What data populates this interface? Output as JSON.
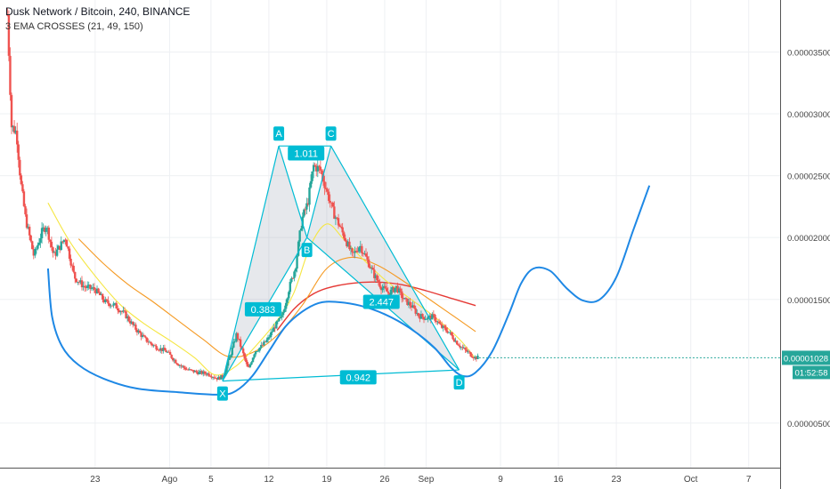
{
  "header": {
    "symbol": "Dusk Network / Bitcoin, 240, BINANCE",
    "indicator": "3 EMA CROSSES (21, 49, 150)"
  },
  "colors": {
    "up": "#26a69a",
    "down": "#ef5350",
    "ema21": "#f5e642",
    "ema49": "#f59a23",
    "ema150": "#e53935",
    "pattern": "#00bcd4",
    "projection": "#1e88e5",
    "price_tag": "#26a69a"
  },
  "chart_data": {
    "type": "candlestick",
    "y_axis": {
      "ticks": [
        "0.00003500",
        "0.00003000",
        "0.00002500",
        "0.00002000",
        "0.00001500",
        "0.00000500"
      ],
      "tick_values": [
        3.5e-05,
        3e-05,
        2.5e-05,
        2e-05,
        1.5e-05,
        5e-06
      ],
      "range": [
        1.4e-06,
        3.92e-05
      ]
    },
    "x_axis": {
      "ticks": [
        "23",
        "Ago",
        "5",
        "12",
        "19",
        "26",
        "Sep",
        "9",
        "16",
        "23",
        "Oct",
        "7"
      ],
      "tick_days": [
        0,
        9,
        14,
        21,
        28,
        35,
        40,
        49,
        56,
        63,
        72,
        79
      ],
      "range_days": [
        -11.5,
        82.8
      ]
    },
    "current_price": "0.00001028",
    "countdown": "01:52:58",
    "harmonic_pattern": {
      "points": [
        {
          "label": "X",
          "day": 15.4,
          "price": 8.4e-06
        },
        {
          "label": "A",
          "day": 22.2,
          "price": 2.74e-05
        },
        {
          "label": "B",
          "day": 25.6,
          "price": 2e-05
        },
        {
          "label": "C",
          "day": 28.5,
          "price": 2.74e-05
        },
        {
          "label": "D",
          "day": 44.0,
          "price": 9.3e-06
        }
      ],
      "ratios": [
        {
          "label": "1.011",
          "day": 25.5,
          "price": 2.68e-05
        },
        {
          "label": "0.383",
          "day": 20.3,
          "price": 1.42e-05
        },
        {
          "label": "2.447",
          "day": 34.6,
          "price": 1.48e-05
        },
        {
          "label": "0.942",
          "day": 31.8,
          "price": 8.7e-06
        }
      ]
    },
    "projection_curve": [
      [
        -5.7,
        1.75e-05
      ],
      [
        -5.2,
        1.36e-05
      ],
      [
        -4.0,
        1.12e-05
      ],
      [
        -2.0,
        9.7e-06
      ],
      [
        1.0,
        8.6e-06
      ],
      [
        5.0,
        7.8e-06
      ],
      [
        10.0,
        7.5e-06
      ],
      [
        15.0,
        7.3e-06
      ],
      [
        17.0,
        7.6e-06
      ],
      [
        19.0,
        8.8e-06
      ],
      [
        21.0,
        1.08e-05
      ],
      [
        23.0,
        1.28e-05
      ],
      [
        25.0,
        1.4e-05
      ],
      [
        27.0,
        1.47e-05
      ],
      [
        29.0,
        1.48e-05
      ],
      [
        32.0,
        1.45e-05
      ],
      [
        35.0,
        1.38e-05
      ],
      [
        38.0,
        1.27e-05
      ],
      [
        41.0,
        1.11e-05
      ],
      [
        43.0,
        9.5e-06
      ],
      [
        44.5,
        8.8e-06
      ],
      [
        46.0,
        9.1e-06
      ],
      [
        48.0,
        1.08e-05
      ],
      [
        50.0,
        1.38e-05
      ],
      [
        51.5,
        1.63e-05
      ],
      [
        53.0,
        1.75e-05
      ],
      [
        55.0,
        1.73e-05
      ],
      [
        57.0,
        1.59e-05
      ],
      [
        59.0,
        1.49e-05
      ],
      [
        61.0,
        1.5e-05
      ],
      [
        63.0,
        1.68e-05
      ],
      [
        65.0,
        2.05e-05
      ],
      [
        67.0,
        2.42e-05
      ]
    ],
    "ema_21": [
      [
        -5.7,
        2.28e-05
      ],
      [
        -3.0,
        1.96e-05
      ],
      [
        0.0,
        1.69e-05
      ],
      [
        3.0,
        1.46e-05
      ],
      [
        6.0,
        1.3e-05
      ],
      [
        9.0,
        1.17e-05
      ],
      [
        12.0,
        1.03e-05
      ],
      [
        14.5,
        8.9e-06
      ],
      [
        17.0,
        9.6e-06
      ],
      [
        19.5,
        1.13e-05
      ],
      [
        22.0,
        1.33e-05
      ],
      [
        24.0,
        1.55e-05
      ],
      [
        26.0,
        1.93e-05
      ],
      [
        28.0,
        2.11e-05
      ],
      [
        30.0,
        1.99e-05
      ],
      [
        32.0,
        1.85e-05
      ],
      [
        35.0,
        1.66e-05
      ],
      [
        38.0,
        1.51e-05
      ],
      [
        41.0,
        1.36e-05
      ],
      [
        44.0,
        1.18e-05
      ],
      [
        46.0,
        1.02e-05
      ]
    ],
    "ema_49": [
      [
        -2.0,
        1.99e-05
      ],
      [
        1.0,
        1.79e-05
      ],
      [
        4.0,
        1.62e-05
      ],
      [
        7.0,
        1.48e-05
      ],
      [
        10.0,
        1.33e-05
      ],
      [
        13.0,
        1.18e-05
      ],
      [
        16.0,
        1.04e-05
      ],
      [
        19.0,
        1.07e-05
      ],
      [
        22.0,
        1.21e-05
      ],
      [
        25.0,
        1.45e-05
      ],
      [
        28.0,
        1.75e-05
      ],
      [
        31.0,
        1.84e-05
      ],
      [
        34.0,
        1.78e-05
      ],
      [
        37.0,
        1.66e-05
      ],
      [
        40.0,
        1.52e-05
      ],
      [
        43.0,
        1.38e-05
      ],
      [
        46.0,
        1.24e-05
      ]
    ],
    "ema_150": [
      [
        22.0,
        1.25e-05
      ],
      [
        24.0,
        1.42e-05
      ],
      [
        26.0,
        1.53e-05
      ],
      [
        28.0,
        1.59e-05
      ],
      [
        31.0,
        1.63e-05
      ],
      [
        34.0,
        1.64e-05
      ],
      [
        37.0,
        1.62e-05
      ],
      [
        40.0,
        1.57e-05
      ],
      [
        43.0,
        1.51e-05
      ],
      [
        46.0,
        1.45e-05
      ]
    ],
    "price_path": [
      [
        -10.6,
        3.8e-05
      ],
      [
        -10.1,
        2.9e-05
      ],
      [
        -9.5,
        2.85e-05
      ],
      [
        -9.0,
        2.45e-05
      ],
      [
        -8.4,
        2.15e-05
      ],
      [
        -7.4,
        1.85e-05
      ],
      [
        -6.4,
        2.05e-05
      ],
      [
        -5.9,
        2.1e-05
      ],
      [
        -5.0,
        1.85e-05
      ],
      [
        -3.6,
        2e-05
      ],
      [
        -2.5,
        1.68e-05
      ],
      [
        -1.3,
        1.6e-05
      ],
      [
        0.0,
        1.58e-05
      ],
      [
        1.2,
        1.48e-05
      ],
      [
        2.4,
        1.45e-05
      ],
      [
        3.6,
        1.38e-05
      ],
      [
        4.8,
        1.27e-05
      ],
      [
        6.0,
        1.18e-05
      ],
      [
        7.2,
        1.12e-05
      ],
      [
        8.6,
        1.08e-05
      ],
      [
        10.0,
        9.8e-06
      ],
      [
        11.2,
        9.3e-06
      ],
      [
        12.4,
        9.1e-06
      ],
      [
        13.6,
        9e-06
      ],
      [
        14.8,
        8.6e-06
      ],
      [
        15.5,
        8.8e-06
      ],
      [
        16.3,
        1.04e-05
      ],
      [
        17.1,
        1.22e-05
      ],
      [
        17.8,
        1.08e-05
      ],
      [
        18.5,
        9.3e-06
      ],
      [
        19.3,
        1.08e-05
      ],
      [
        20.1,
        1.12e-05
      ],
      [
        20.9,
        1.18e-05
      ],
      [
        21.7,
        1.28e-05
      ],
      [
        22.6,
        1.36e-05
      ],
      [
        23.4,
        1.58e-05
      ],
      [
        24.2,
        1.76e-05
      ],
      [
        25.0,
        2.15e-05
      ],
      [
        25.7,
        2.28e-05
      ],
      [
        26.4,
        2.58e-05
      ],
      [
        27.2,
        2.55e-05
      ],
      [
        27.9,
        2.4e-05
      ],
      [
        28.7,
        2.22e-05
      ],
      [
        29.5,
        2.1e-05
      ],
      [
        30.3,
        1.98e-05
      ],
      [
        31.1,
        1.85e-05
      ],
      [
        32.0,
        1.94e-05
      ],
      [
        32.8,
        1.83e-05
      ],
      [
        33.7,
        1.7e-05
      ],
      [
        34.6,
        1.6e-05
      ],
      [
        35.5,
        1.55e-05
      ],
      [
        36.4,
        1.6e-05
      ],
      [
        37.3,
        1.5e-05
      ],
      [
        38.2,
        1.45e-05
      ],
      [
        39.1,
        1.37e-05
      ],
      [
        40.0,
        1.35e-05
      ],
      [
        40.9,
        1.36e-05
      ],
      [
        41.8,
        1.28e-05
      ],
      [
        42.7,
        1.24e-05
      ],
      [
        43.5,
        1.17e-05
      ],
      [
        44.3,
        1.11e-05
      ],
      [
        45.1,
        1.07e-05
      ],
      [
        45.9,
        1.03e-05
      ],
      [
        46.4,
        1.03e-05
      ]
    ]
  }
}
